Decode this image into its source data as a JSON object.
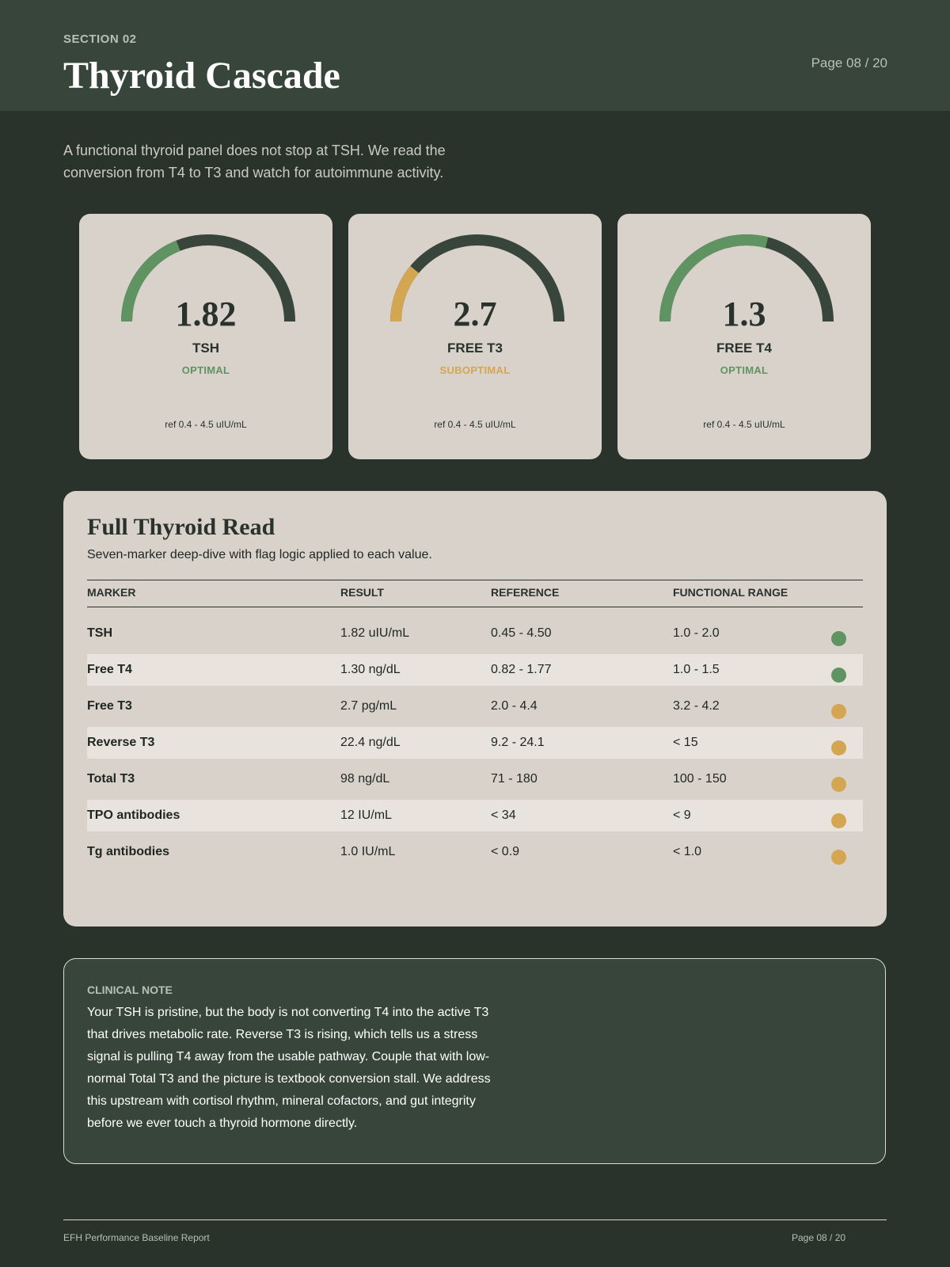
{
  "header": {
    "section_label": "SECTION 02",
    "title": "Thyroid Cascade",
    "page_indicator": "Page 08 / 20"
  },
  "intro": "A functional thyroid panel does not stop at TSH. We read the conversion from T4 to T3 and watch for autoimmune activity.",
  "colors": {
    "optimal": "#5f9462",
    "suboptimal": "#d4a651",
    "track": "#37453a"
  },
  "gauges": [
    {
      "value": "1.82",
      "name": "TSH",
      "status": "OPTIMAL",
      "status_key": "optimal",
      "fill_fraction": 0.38,
      "reference": "ref 0.4 - 4.5 uIU/mL"
    },
    {
      "value": "2.7",
      "name": "FREE T3",
      "status": "SUBOPTIMAL",
      "status_key": "suboptimal",
      "fill_fraction": 0.22,
      "reference": "ref 0.4 - 4.5 uIU/mL"
    },
    {
      "value": "1.3",
      "name": "FREE T4",
      "status": "OPTIMAL",
      "status_key": "optimal",
      "fill_fraction": 0.58,
      "reference": "ref 0.4 - 4.5 uIU/mL"
    }
  ],
  "table": {
    "title": "Full Thyroid Read",
    "subtitle": "Seven-marker deep-dive with flag logic applied to each value.",
    "columns": [
      "MARKER",
      "RESULT",
      "REFERENCE",
      "FUNCTIONAL RANGE"
    ],
    "rows": [
      {
        "marker": "TSH",
        "result": "1.82 uIU/mL",
        "reference": "0.45 - 4.50",
        "functional": "1.0 - 2.0",
        "flag": "optimal"
      },
      {
        "marker": "Free T4",
        "result": "1.30 ng/dL",
        "reference": "0.82 - 1.77",
        "functional": "1.0 - 1.5",
        "flag": "optimal"
      },
      {
        "marker": "Free T3",
        "result": "2.7 pg/mL",
        "reference": "2.0 - 4.4",
        "functional": "3.2 - 4.2",
        "flag": "suboptimal"
      },
      {
        "marker": "Reverse T3",
        "result": "22.4 ng/dL",
        "reference": "9.2 - 24.1",
        "functional": "< 15",
        "flag": "suboptimal"
      },
      {
        "marker": "Total T3",
        "result": "98 ng/dL",
        "reference": "71 - 180",
        "functional": "100 - 150",
        "flag": "suboptimal"
      },
      {
        "marker": "TPO antibodies",
        "result": "12 IU/mL",
        "reference": "< 34",
        "functional": "< 9",
        "flag": "suboptimal"
      },
      {
        "marker": "Tg antibodies",
        "result": "1.0 IU/mL",
        "reference": "< 0.9",
        "functional": "< 1.0",
        "flag": "suboptimal"
      }
    ]
  },
  "clinical_note": {
    "label": "CLINICAL NOTE",
    "text": "Your TSH is pristine, but the body is not converting T4 into the active T3 that drives metabolic rate. Reverse T3 is rising, which tells us a stress signal is pulling T4 away from the usable pathway. Couple that with low-normal Total T3 and the picture is textbook conversion stall. We address this upstream with cortisol rhythm, mineral cofactors, and gut integrity before we ever touch a thyroid hormone directly."
  },
  "footer": {
    "report_name": "EFH Performance Baseline Report",
    "page_indicator": "Page 08 / 20"
  }
}
